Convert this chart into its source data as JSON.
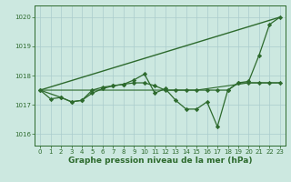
{
  "background_color": "#cce8e0",
  "grid_color": "#aacccc",
  "line_color": "#2d6a2d",
  "title": "Graphe pression niveau de la mer (hPa)",
  "xlim": [
    -0.5,
    23.5
  ],
  "ylim": [
    1015.6,
    1020.4
  ],
  "yticks": [
    1016,
    1017,
    1018,
    1019,
    1020
  ],
  "xticks": [
    0,
    1,
    2,
    3,
    4,
    5,
    6,
    7,
    8,
    9,
    10,
    11,
    12,
    13,
    14,
    15,
    16,
    17,
    18,
    19,
    20,
    21,
    22,
    23
  ],
  "series": [
    {
      "x": [
        0,
        23
      ],
      "y": [
        1017.5,
        1020.0
      ],
      "marker": "none",
      "lw": 1.0
    },
    {
      "x": [
        0,
        5,
        10,
        15,
        20,
        23
      ],
      "y": [
        1017.5,
        1017.5,
        1017.5,
        1017.5,
        1017.75,
        1017.75
      ],
      "marker": "none",
      "lw": 0.8
    },
    {
      "x": [
        0,
        1,
        2,
        3,
        4,
        5,
        6,
        7,
        8,
        9,
        10,
        11,
        12,
        13,
        14,
        15,
        16,
        17,
        18,
        19,
        20,
        21,
        22,
        23
      ],
      "y": [
        1017.5,
        1017.2,
        1017.25,
        1017.1,
        1017.15,
        1017.5,
        1017.6,
        1017.65,
        1017.7,
        1017.85,
        1018.05,
        1017.4,
        1017.55,
        1017.15,
        1016.85,
        1016.85,
        1017.1,
        1016.25,
        1017.5,
        1017.75,
        1017.8,
        1018.7,
        1019.75,
        1020.0
      ],
      "marker": "D",
      "lw": 0.9
    },
    {
      "x": [
        0,
        2,
        3,
        4,
        5,
        6,
        7,
        8,
        9,
        10,
        11,
        12,
        13,
        14,
        15,
        16,
        17,
        18,
        19,
        20,
        21,
        22,
        23
      ],
      "y": [
        1017.5,
        1017.25,
        1017.1,
        1017.15,
        1017.4,
        1017.55,
        1017.65,
        1017.7,
        1017.75,
        1017.75,
        1017.65,
        1017.5,
        1017.5,
        1017.5,
        1017.5,
        1017.5,
        1017.5,
        1017.5,
        1017.75,
        1017.75,
        1017.75,
        1017.75,
        1017.75
      ],
      "marker": "D",
      "lw": 0.9
    }
  ],
  "title_fontsize": 6.5,
  "tick_fontsize": 5
}
